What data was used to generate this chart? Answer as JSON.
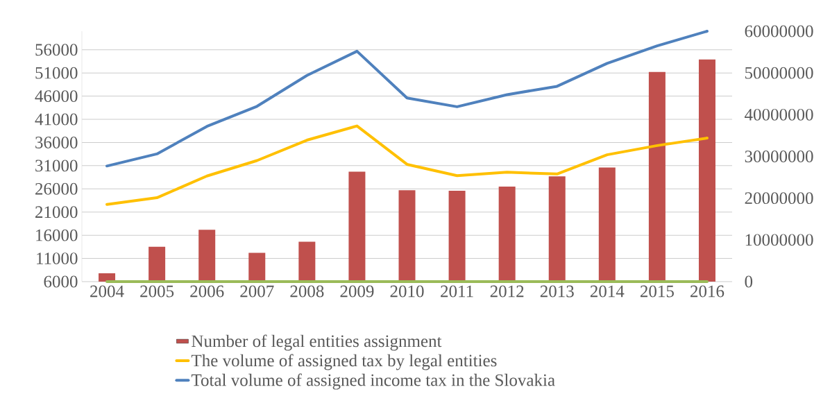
{
  "chart_data": {
    "type": "bar",
    "categories": [
      "2004",
      "2005",
      "2006",
      "2007",
      "2008",
      "2009",
      "2010",
      "2011",
      "2012",
      "2013",
      "2014",
      "2015",
      "2016"
    ],
    "series": [
      {
        "name": "Number of legal entities assignment",
        "color": "#c0504d",
        "values": [
          7800,
          13500,
          17200,
          12200,
          14600,
          29700,
          25700,
          25600,
          26500,
          28700,
          30600,
          51200,
          53900
        ]
      },
      {
        "name": "The volume of assigned tax by legal entities",
        "type": "line",
        "axis": "y2",
        "color": "#ffc000",
        "values": [
          18500000,
          20100000,
          25300000,
          29000000,
          33900000,
          37300000,
          28100000,
          25400000,
          26200000,
          25800000,
          30400000,
          32600000,
          34400000
        ]
      },
      {
        "name": "Total volume of assigned income tax in the Slovakia",
        "type": "line",
        "axis": "y2",
        "color": "#4f81bd",
        "values": [
          27700000,
          30600000,
          37200000,
          42000000,
          49400000,
          55200000,
          44000000,
          41900000,
          44800000,
          46800000,
          52300000,
          56500000,
          60000000
        ]
      },
      {
        "type": "line",
        "axis": "y2",
        "color": "#9bbb59",
        "values": [
          0,
          0,
          0,
          0,
          0,
          0,
          0,
          0,
          0,
          0,
          0,
          0,
          0
        ]
      }
    ],
    "ylim": [
      6000,
      60000
    ],
    "yticks": [
      6000,
      11000,
      16000,
      21000,
      26000,
      31000,
      36000,
      41000,
      46000,
      51000,
      56000
    ],
    "y2lim": [
      0,
      60000000
    ],
    "y2ticks": [
      0,
      10000000,
      20000000,
      30000000,
      40000000,
      50000000,
      60000000
    ],
    "grid": "y",
    "legend": "bottom"
  }
}
